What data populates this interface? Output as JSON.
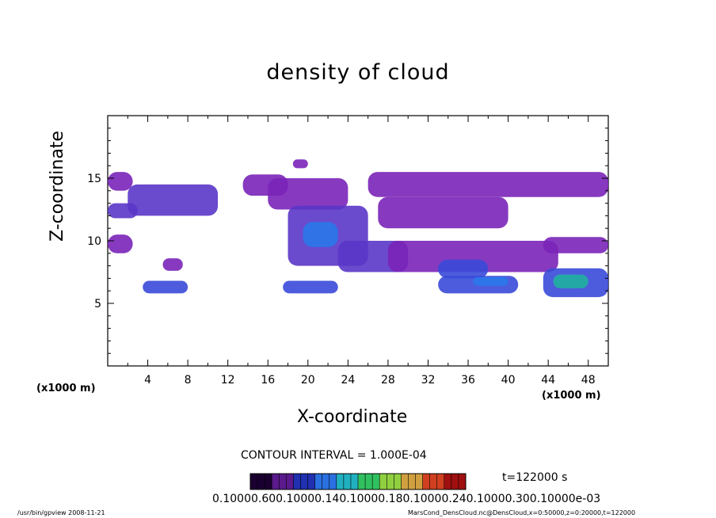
{
  "app": {
    "footer_left": "/usr/bin/gpview   2008-11-21",
    "footer_right": "MarsCond_DensCloud.nc@DensCloud,x=0:50000,z=0:20000,t=122000"
  },
  "chart_data": {
    "type": "heatmap",
    "title": "density of cloud",
    "xlabel": "X-coordinate",
    "ylabel": "Z-coordinate",
    "x_unit": "(x1000 m)",
    "xlim": [
      0,
      50
    ],
    "ylim": [
      0,
      20
    ],
    "x_ticks": [
      4,
      8,
      12,
      16,
      20,
      24,
      28,
      32,
      36,
      40,
      44,
      48
    ],
    "y_ticks": [
      5,
      10,
      15
    ],
    "contour_interval": "CONTOUR INTERVAL = 1.000E-04",
    "time": "t=122000 s",
    "colorbar_labels": "0.10000.600.10000.140.10000.180.10000.240.10000.300.10000e-03",
    "colorbar_colors": [
      "#1a0030",
      "#5a1a8c",
      "#2030b0",
      "#2a70e0",
      "#20b0c0",
      "#30c060",
      "#90d040",
      "#d0a040",
      "#d04020",
      "#a01010"
    ],
    "regions": [
      {
        "x": [
          0,
          2.5
        ],
        "z": [
          14,
          15.5
        ],
        "level": 1
      },
      {
        "x": [
          2,
          11
        ],
        "z": [
          12,
          14.5
        ],
        "level": 2
      },
      {
        "x": [
          0,
          3
        ],
        "z": [
          11.8,
          13
        ],
        "level": 2
      },
      {
        "x": [
          0,
          2.5
        ],
        "z": [
          9,
          10.5
        ],
        "level": 1
      },
      {
        "x": [
          5.5,
          7.5
        ],
        "z": [
          7.6,
          8.6
        ],
        "level": 1
      },
      {
        "x": [
          3.5,
          8
        ],
        "z": [
          5.8,
          6.8
        ],
        "level": 3
      },
      {
        "x": [
          13.5,
          18
        ],
        "z": [
          13.6,
          15.3
        ],
        "level": 1
      },
      {
        "x": [
          16,
          24
        ],
        "z": [
          12.5,
          15
        ],
        "level": 1
      },
      {
        "x": [
          18,
          26
        ],
        "z": [
          8,
          12.8
        ],
        "level": 2
      },
      {
        "x": [
          19.5,
          23
        ],
        "z": [
          9.5,
          11.5
        ],
        "level": 4
      },
      {
        "x": [
          23,
          30
        ],
        "z": [
          7.5,
          10
        ],
        "level": 2
      },
      {
        "x": [
          17.5,
          23
        ],
        "z": [
          5.8,
          6.8
        ],
        "level": 3
      },
      {
        "x": [
          18.5,
          20
        ],
        "z": [
          15.8,
          16.5
        ],
        "level": 1
      },
      {
        "x": [
          26,
          50
        ],
        "z": [
          13.5,
          15.5
        ],
        "level": 1
      },
      {
        "x": [
          27,
          40
        ],
        "z": [
          11,
          13.5
        ],
        "level": 1
      },
      {
        "x": [
          28,
          45
        ],
        "z": [
          7.5,
          10
        ],
        "level": 1
      },
      {
        "x": [
          33,
          38
        ],
        "z": [
          7,
          8.5
        ],
        "level": 3
      },
      {
        "x": [
          33,
          41
        ],
        "z": [
          5.8,
          7.2
        ],
        "level": 3
      },
      {
        "x": [
          36.5,
          40
        ],
        "z": [
          6.4,
          7.1
        ],
        "level": 4
      },
      {
        "x": [
          43.5,
          50
        ],
        "z": [
          5.5,
          7.8
        ],
        "level": 3
      },
      {
        "x": [
          44.5,
          48
        ],
        "z": [
          6.2,
          7.3
        ],
        "level": 5
      },
      {
        "x": [
          43.5,
          50
        ],
        "z": [
          9,
          10.3
        ],
        "level": 1
      }
    ]
  }
}
